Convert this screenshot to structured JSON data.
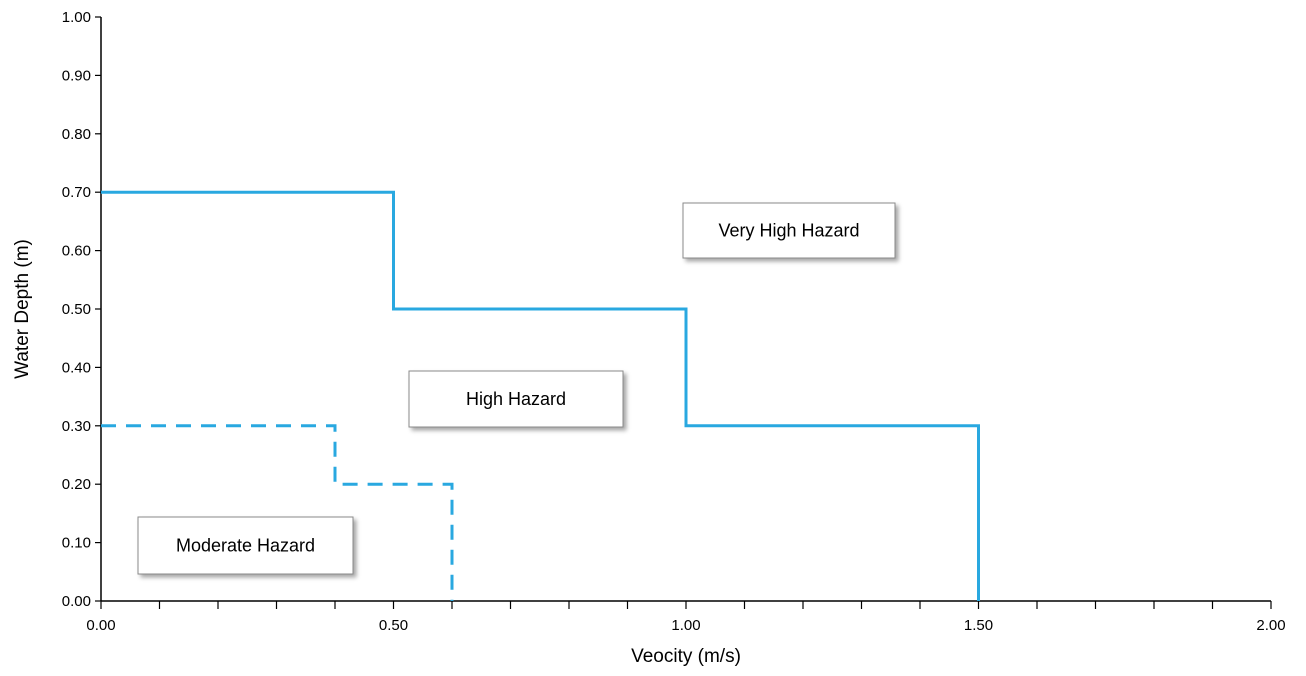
{
  "chart_data": {
    "type": "line",
    "xlabel": "Veocity (m/s)",
    "ylabel": "Water Depth (m)",
    "xlim": [
      0,
      2.0
    ],
    "ylim": [
      0,
      1.0
    ],
    "x_ticks": [
      "0.00",
      "0.50",
      "1.00",
      "1.50",
      "2.00"
    ],
    "x_minor_tick_step": 0.1,
    "y_ticks": [
      "0.00",
      "0.10",
      "0.20",
      "0.30",
      "0.40",
      "0.50",
      "0.60",
      "0.70",
      "0.80",
      "0.90",
      "1.00"
    ],
    "grid": false,
    "series": [
      {
        "style": "solid",
        "color": "#29a8e0",
        "x": [
          0,
          0.5,
          0.5,
          1.0,
          1.0,
          1.5,
          1.5
        ],
        "y": [
          0.7,
          0.7,
          0.5,
          0.5,
          0.3,
          0.3,
          0
        ]
      },
      {
        "style": "dashed",
        "color": "#29a8e0",
        "x": [
          0,
          0.4,
          0.4,
          0.6,
          0.6
        ],
        "y": [
          0.3,
          0.3,
          0.2,
          0.2,
          0
        ]
      }
    ],
    "annotations": [
      {
        "text": "Very High Hazard"
      },
      {
        "text": "High Hazard"
      },
      {
        "text": "Moderate Hazard"
      }
    ]
  }
}
